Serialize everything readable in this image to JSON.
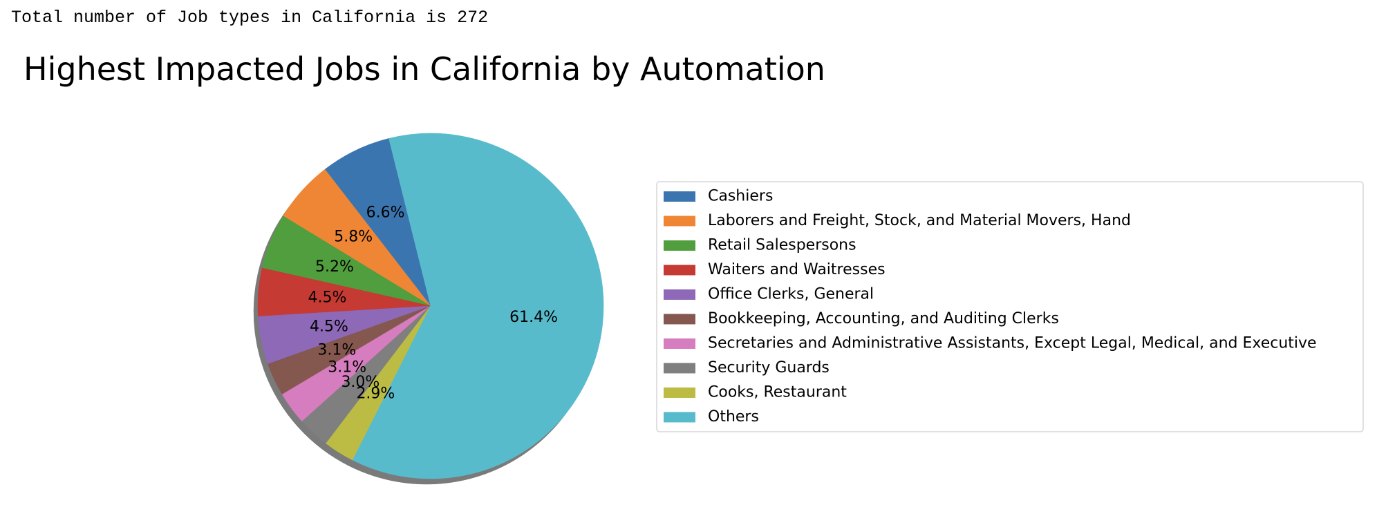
{
  "header_text": "Total number of Job types in California is 272",
  "chart_data": {
    "type": "pie",
    "title": "Highest Impacted Jobs in California by Automation",
    "categories": [
      "Cashiers",
      "Laborers and Freight, Stock, and Material Movers, Hand",
      "Retail Salespersons",
      "Waiters and Waitresses",
      "Office Clerks, General",
      "Bookkeeping, Accounting, and Auditing Clerks",
      "Secretaries and Administrative Assistants, Except Legal, Medical, and Executive",
      "Security Guards",
      "Cooks, Restaurant",
      "Others"
    ],
    "values": [
      6.6,
      5.8,
      5.2,
      4.5,
      4.5,
      3.1,
      3.1,
      3.0,
      2.9,
      61.4
    ],
    "labels": [
      "6.6%",
      "5.8%",
      "5.2%",
      "4.5%",
      "4.5%",
      "3.1%",
      "3.1%",
      "3.0%",
      "2.9%",
      "61.4%"
    ],
    "colors": [
      "#3b75af",
      "#ef8636",
      "#519e3e",
      "#c53a32",
      "#8d69b8",
      "#84584e",
      "#d57dbf",
      "#7f7f7f",
      "#bcbc45",
      "#58bbcc"
    ],
    "start_angle_deg": 104,
    "direction": "counterclockwise",
    "shadow": true,
    "legend_position": "right"
  }
}
